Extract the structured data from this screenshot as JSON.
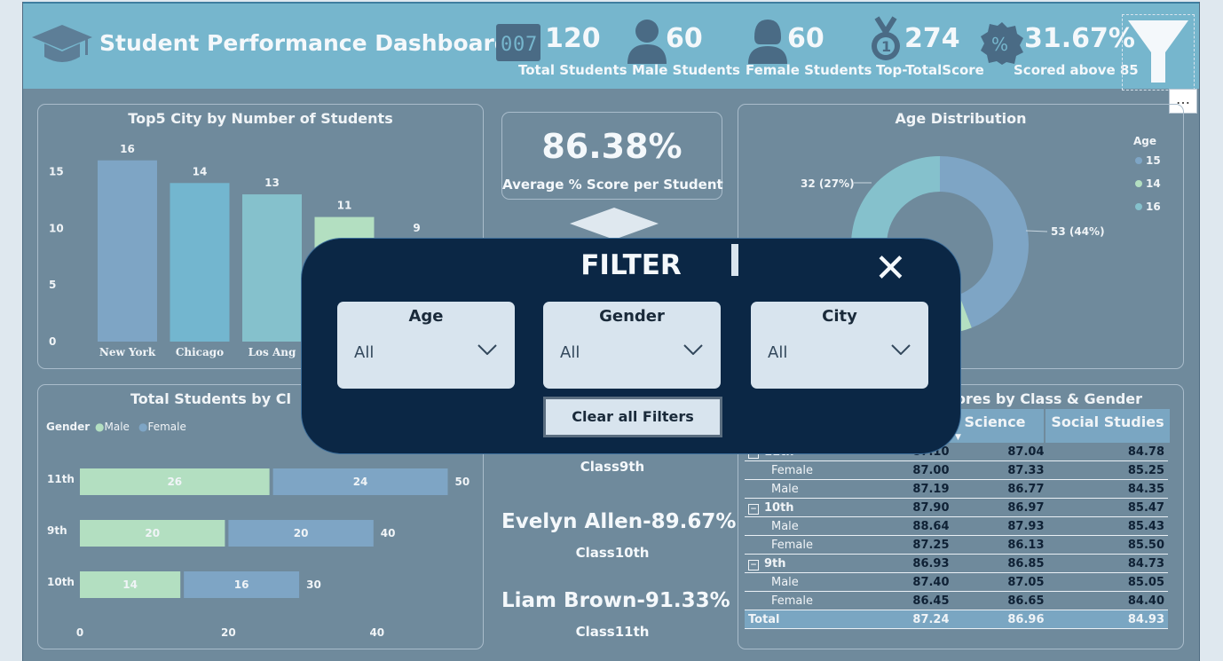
{
  "header": {
    "title": "Student Performance Dashboard",
    "kpis": [
      {
        "value": "120",
        "label": "Total Students",
        "icon": "counter-icon"
      },
      {
        "value": "60",
        "label": "Male Students",
        "icon": "male-user-icon"
      },
      {
        "value": "60",
        "label": "Female Students",
        "icon": "female-user-icon"
      },
      {
        "value": "274",
        "label": "Top-TotalScore",
        "icon": "medal-icon"
      },
      {
        "value": "31.67%",
        "label": "Scored above 85",
        "icon": "percent-badge-icon"
      }
    ]
  },
  "more_options": "…",
  "city_chart": {
    "title": "Top5 City by Number of Students",
    "chart_data": {
      "type": "bar",
      "categories": [
        "New York",
        "Chicago",
        "Los Angeles",
        "",
        ""
      ],
      "values": [
        16,
        14,
        13,
        11,
        9
      ],
      "yticks": [
        "0",
        "5",
        "10",
        "15"
      ],
      "ylim": [
        0,
        17
      ]
    },
    "visible_labels": [
      "New York",
      "Chicago",
      "Los Ang"
    ]
  },
  "avg_card": {
    "value": "86.38%",
    "label": "Average % Score per Student"
  },
  "age_chart": {
    "title": "Age Distribution",
    "legend_title": "Age",
    "chart_data": {
      "type": "pie",
      "labels": [
        "15",
        "14",
        "16"
      ],
      "values": [
        53,
        35,
        32
      ],
      "colors": [
        "#7ea5c5",
        "#b3dfc1",
        "#85c1cc"
      ]
    },
    "annotations": [
      "53 (44%)",
      "32 (27%)"
    ]
  },
  "class_chart": {
    "title": "Total Students by Cl",
    "legend_title": "Gender",
    "legend": [
      "Male",
      "Female"
    ],
    "chart_data": {
      "type": "bar",
      "categories": [
        "11th",
        "9th",
        "10th"
      ],
      "series": [
        {
          "name": "Male",
          "values": [
            26,
            20,
            14
          ],
          "color": "#b3dfc1"
        },
        {
          "name": "Female",
          "values": [
            24,
            20,
            16
          ],
          "color": "#7ea5c5"
        }
      ],
      "totals": [
        "50",
        "40",
        "30"
      ],
      "xticks": [
        "0",
        "20",
        "40"
      ]
    }
  },
  "toppers": {
    "items": [
      {
        "name": "",
        "cls": "Class9th"
      },
      {
        "name": "Evelyn Allen-89.67%",
        "cls": "Class10th"
      },
      {
        "name": "Liam Brown-91.33%",
        "cls": "Class11th"
      }
    ]
  },
  "score_table": {
    "title": "Scores by Class & Gender",
    "columns": [
      "",
      "Science",
      "Social Studies"
    ],
    "rows": [
      {
        "label": "11th",
        "group": true,
        "vals": [
          "87.10",
          "87.04",
          "84.78"
        ]
      },
      {
        "label": "Female",
        "group": false,
        "vals": [
          "87.00",
          "87.33",
          "85.25"
        ]
      },
      {
        "label": "Male",
        "group": false,
        "vals": [
          "87.19",
          "86.77",
          "84.35"
        ]
      },
      {
        "label": "10th",
        "group": true,
        "vals": [
          "87.90",
          "86.97",
          "85.47"
        ]
      },
      {
        "label": "Male",
        "group": false,
        "vals": [
          "88.64",
          "87.93",
          "85.43"
        ]
      },
      {
        "label": "Female",
        "group": false,
        "vals": [
          "87.25",
          "86.13",
          "85.50"
        ]
      },
      {
        "label": "9th",
        "group": true,
        "vals": [
          "86.93",
          "86.85",
          "84.73"
        ]
      },
      {
        "label": "Male",
        "group": false,
        "vals": [
          "87.40",
          "87.05",
          "85.05"
        ]
      },
      {
        "label": "Female",
        "group": false,
        "vals": [
          "86.45",
          "86.65",
          "84.40"
        ]
      },
      {
        "label": "Total",
        "group": false,
        "total": true,
        "vals": [
          "87.24",
          "86.96",
          "84.93"
        ]
      }
    ],
    "collapse_symbol": "⊟"
  },
  "filter_modal": {
    "title": "FILTER",
    "close": "✕",
    "dropdowns": [
      {
        "label": "Age",
        "value": "All"
      },
      {
        "label": "Gender",
        "value": "All"
      },
      {
        "label": "City",
        "value": "All"
      }
    ],
    "clear_label": "Clear all Filters"
  },
  "colors": {
    "header": "#76b6cd",
    "canvas": "#6f8a9c",
    "bar_blue": "#7ea5c5",
    "bar_teal": "#73b6cf",
    "bar_green": "#b3dfc1",
    "modal": "#0b2745"
  }
}
